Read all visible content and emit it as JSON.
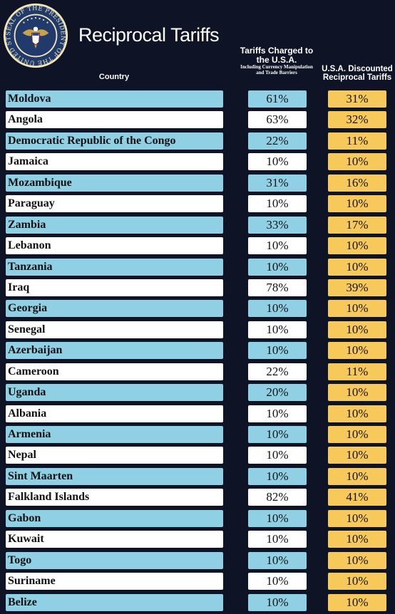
{
  "header": {
    "title": "Reciprocal Tariffs",
    "col_country": "Country",
    "col_charged_main": "Tariffs Charged to the U.S.A.",
    "col_charged_sub": "Including Currency Manipulation and Trade Barriers",
    "col_discount": "U.S.A. Discounted Reciprocal Tariffs",
    "seal_text": "SEAL OF THE PRESIDENT OF THE UNITED STATES"
  },
  "colors": {
    "background": "#0e1425",
    "blue_row": "#8fd0e5",
    "white_row": "#ffffff",
    "discount": "#f7c85a"
  },
  "rows": [
    {
      "country": "Moldova",
      "charged": "61%",
      "discounted": "31%"
    },
    {
      "country": "Angola",
      "charged": "63%",
      "discounted": "32%"
    },
    {
      "country": "Democratic Republic of the Congo",
      "charged": "22%",
      "discounted": "11%"
    },
    {
      "country": "Jamaica",
      "charged": "10%",
      "discounted": "10%"
    },
    {
      "country": "Mozambique",
      "charged": "31%",
      "discounted": "16%"
    },
    {
      "country": "Paraguay",
      "charged": "10%",
      "discounted": "10%"
    },
    {
      "country": "Zambia",
      "charged": "33%",
      "discounted": "17%"
    },
    {
      "country": "Lebanon",
      "charged": "10%",
      "discounted": "10%"
    },
    {
      "country": "Tanzania",
      "charged": "10%",
      "discounted": "10%"
    },
    {
      "country": "Iraq",
      "charged": "78%",
      "discounted": "39%"
    },
    {
      "country": "Georgia",
      "charged": "10%",
      "discounted": "10%"
    },
    {
      "country": "Senegal",
      "charged": "10%",
      "discounted": "10%"
    },
    {
      "country": "Azerbaijan",
      "charged": "10%",
      "discounted": "10%"
    },
    {
      "country": "Cameroon",
      "charged": "22%",
      "discounted": "11%"
    },
    {
      "country": "Uganda",
      "charged": "20%",
      "discounted": "10%"
    },
    {
      "country": "Albania",
      "charged": "10%",
      "discounted": "10%"
    },
    {
      "country": "Armenia",
      "charged": "10%",
      "discounted": "10%"
    },
    {
      "country": "Nepal",
      "charged": "10%",
      "discounted": "10%"
    },
    {
      "country": "Sint Maarten",
      "charged": "10%",
      "discounted": "10%"
    },
    {
      "country": "Falkland Islands",
      "charged": "82%",
      "discounted": "41%"
    },
    {
      "country": "Gabon",
      "charged": "10%",
      "discounted": "10%"
    },
    {
      "country": "Kuwait",
      "charged": "10%",
      "discounted": "10%"
    },
    {
      "country": "Togo",
      "charged": "10%",
      "discounted": "10%"
    },
    {
      "country": "Suriname",
      "charged": "10%",
      "discounted": "10%"
    },
    {
      "country": "Belize",
      "charged": "10%",
      "discounted": "10%"
    }
  ]
}
